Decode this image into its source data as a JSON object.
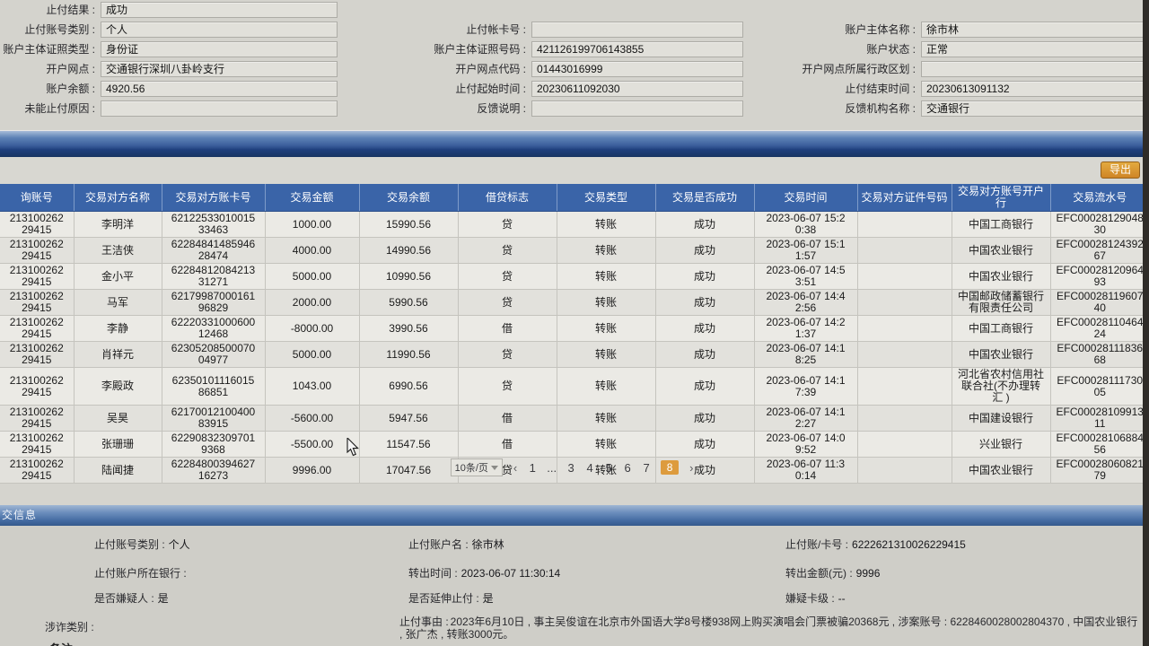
{
  "colors": {
    "accent_orange": "#dd9b3d",
    "table_header_blue": "#3a64a8",
    "section_bar_blue": "#3a5d9b",
    "export_button_orange": "#cf8526"
  },
  "form": {
    "rows": [
      {
        "left": {
          "label": "止付结果 :",
          "value": "成功"
        }
      },
      {
        "left": {
          "label": "止付账号类别 :",
          "value": "个人"
        },
        "mid": {
          "label": "止付帐卡号 :",
          "value": ""
        },
        "right": {
          "label": "账户主体名称 :",
          "value": "徐市林"
        }
      },
      {
        "left": {
          "label": "账户主体证照类型 :",
          "value": "身份证"
        },
        "mid": {
          "label": "账户主体证照号码 :",
          "value": "421126199706143855"
        },
        "right": {
          "label": "账户状态 :",
          "value": "正常"
        }
      },
      {
        "left": {
          "label": "开户网点 :",
          "value": "交通银行深圳八卦岭支行"
        },
        "mid": {
          "label": "开户网点代码 :",
          "value": "01443016999"
        },
        "right": {
          "label": "开户网点所属行政区划 :",
          "value": ""
        }
      },
      {
        "left": {
          "label": "账户余额 :",
          "value": "4920.56"
        },
        "mid": {
          "label": "止付起始时间 :",
          "value": "20230611092030"
        },
        "right": {
          "label": "止付结束时间 :",
          "value": "20230613091132"
        }
      },
      {
        "left": {
          "label": "未能止付原因 :",
          "value": ""
        },
        "mid": {
          "label": "反馈说明 :",
          "value": ""
        },
        "right": {
          "label": "反馈机构名称 :",
          "value": "交通银行"
        }
      }
    ]
  },
  "toolbar": {
    "export_label": "导出"
  },
  "table": {
    "headers": [
      "询账号",
      "交易对方名称",
      "交易对方账卡号",
      "交易金额",
      "交易余额",
      "借贷标志",
      "交易类型",
      "交易是否成功",
      "交易时间",
      "交易对方证件号码",
      "交易对方账号开户行",
      "交易流水号"
    ],
    "rows": [
      [
        "213100262\n29415",
        "李明洋",
        "62122533010015\n33463",
        "1000.00",
        "15990.56",
        "贷",
        "转账",
        "成功",
        "2023-06-07 15:2\n0:38",
        "",
        "中国工商银行",
        "EFC00028129048\n30"
      ],
      [
        "213100262\n29415",
        "王洁侠",
        "62284841485946\n28474",
        "4000.00",
        "14990.56",
        "贷",
        "转账",
        "成功",
        "2023-06-07 15:1\n1:57",
        "",
        "中国农业银行",
        "EFC00028124392\n67"
      ],
      [
        "213100262\n29415",
        "金小平",
        "62284812084213\n31271",
        "5000.00",
        "10990.56",
        "贷",
        "转账",
        "成功",
        "2023-06-07 14:5\n3:51",
        "",
        "中国农业银行",
        "EFC00028120964\n93"
      ],
      [
        "213100262\n29415",
        "马军",
        "62179987000161\n96829",
        "2000.00",
        "5990.56",
        "贷",
        "转账",
        "成功",
        "2023-06-07 14:4\n2:56",
        "",
        "中国邮政储蓄银行\n有限责任公司",
        "EFC00028119607\n40"
      ],
      [
        "213100262\n29415",
        "李静",
        "62220331000600\n12468",
        "-8000.00",
        "3990.56",
        "借",
        "转账",
        "成功",
        "2023-06-07 14:2\n1:37",
        "",
        "中国工商银行",
        "EFC00028110464\n24"
      ],
      [
        "213100262\n29415",
        "肖祥元",
        "62305208500070\n04977",
        "5000.00",
        "11990.56",
        "贷",
        "转账",
        "成功",
        "2023-06-07 14:1\n8:25",
        "",
        "中国农业银行",
        "EFC00028111836\n68"
      ],
      [
        "213100262\n29415",
        "李殿政",
        "62350101116015\n86851",
        "1043.00",
        "6990.56",
        "贷",
        "转账",
        "成功",
        "2023-06-07 14:1\n7:39",
        "",
        "河北省农村信用社\n联合社(不办理转\n汇 )",
        "EFC00028111730\n05"
      ],
      [
        "213100262\n29415",
        "吴昊",
        "62170012100400\n83915",
        "-5600.00",
        "5947.56",
        "借",
        "转账",
        "成功",
        "2023-06-07 14:1\n2:27",
        "",
        "中国建设银行",
        "EFC00028109913\n11"
      ],
      [
        "213100262\n29415",
        "张珊珊",
        "62290832309701\n9368",
        "-5500.00",
        "11547.56",
        "借",
        "转账",
        "成功",
        "2023-06-07 14:0\n9:52",
        "",
        "兴业银行",
        "EFC00028106884\n56"
      ],
      [
        "213100262\n29415",
        "陆闻捷",
        "62284800394627\n16273",
        "9996.00",
        "17047.56",
        "贷",
        "转账",
        "成功",
        "2023-06-07 11:3\n0:14",
        "",
        "中国农业银行",
        "EFC00028060821\n79"
      ]
    ]
  },
  "pagination": {
    "page_size_label": "10条/页",
    "prev_label": "‹",
    "next_label": "›",
    "pages": [
      {
        "label": "1",
        "active": false
      },
      {
        "label": "...",
        "active": false
      },
      {
        "label": "3",
        "active": false
      },
      {
        "label": "4",
        "active": false
      },
      {
        "label": "5",
        "active": false
      },
      {
        "label": "6",
        "active": false
      },
      {
        "label": "7",
        "active": false
      },
      {
        "label": "8",
        "active": true
      }
    ]
  },
  "bottom": {
    "bar_title": "交信息",
    "fields": [
      {
        "label": "止付账号类别 :",
        "value": "个人"
      },
      {
        "label": "止付账户名 :",
        "value": "徐市林"
      },
      {
        "label": "止付账/卡号 :",
        "value": "6222621310026229415"
      },
      {
        "label": "止付账户所在银行 :",
        "value": ""
      },
      {
        "label": "转出时间 :",
        "value": "2023-06-07 11:30:14"
      },
      {
        "label": "转出金额(元) :",
        "value": "9996"
      },
      {
        "label": "是否嫌疑人 :",
        "value": "是"
      },
      {
        "label": "是否延伸止付 :",
        "value": "是"
      },
      {
        "label": "嫌疑卡级 :",
        "value": "--"
      }
    ],
    "fraud_type_label": "涉诈类别 :",
    "reason_label": "止付事由 :",
    "reason_text": "2023年6月10日 , 事主吴俊谊在北京市外国语大学8号楼938网上购买演唱会门票被骗20368元 , 涉案账号 : 6228460028002804370 , 中国农业银行 , 张广杰 , 转账3000元。"
  },
  "note_sliver": "备注 :"
}
